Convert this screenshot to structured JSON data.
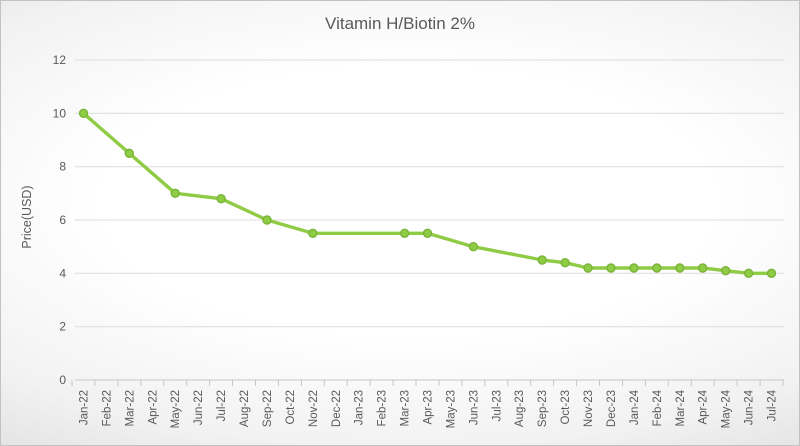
{
  "chart_data": {
    "type": "line",
    "title": "Vitamin H/Biotin 2%",
    "xlabel": "",
    "ylabel": "Price(USD)",
    "ylim": [
      0,
      12
    ],
    "yticks": [
      0,
      2,
      4,
      6,
      8,
      10,
      12
    ],
    "grid": true,
    "legend": false,
    "x_label_rotation": -90,
    "categories": [
      "Jan-22",
      "Feb-22",
      "Mar-22",
      "Apr-22",
      "May-22",
      "Jun-22",
      "Jul-22",
      "Aug-22",
      "Sep-22",
      "Oct-22",
      "Nov-22",
      "Dec-22",
      "Jan-23",
      "Feb-23",
      "Mar-23",
      "Apr-23",
      "May-23",
      "Jun-23",
      "Jul-23",
      "Aug-23",
      "Sep-23",
      "Oct-23",
      "Nov-23",
      "Dec-23",
      "Jan-24",
      "Feb-24",
      "Mar-24",
      "Apr-24",
      "May-24",
      "Jun-24",
      "Jul-24"
    ],
    "series": [
      {
        "name": "Vitamin H/Biotin 2%",
        "color": "#90CB45",
        "marker_stroke": "#79B43A",
        "marker": "circle",
        "points": [
          {
            "x": "Jan-22",
            "y": 10
          },
          {
            "x": "Mar-22",
            "y": 8.5
          },
          {
            "x": "May-22",
            "y": 7
          },
          {
            "x": "Jul-22",
            "y": 6.8
          },
          {
            "x": "Sep-22",
            "y": 6
          },
          {
            "x": "Nov-22",
            "y": 5.5
          },
          {
            "x": "Mar-23",
            "y": 5.5
          },
          {
            "x": "Apr-23",
            "y": 5.5
          },
          {
            "x": "Jun-23",
            "y": 5
          },
          {
            "x": "Sep-23",
            "y": 4.5
          },
          {
            "x": "Oct-23",
            "y": 4.4
          },
          {
            "x": "Nov-23",
            "y": 4.2
          },
          {
            "x": "Dec-23",
            "y": 4.2
          },
          {
            "x": "Jan-24",
            "y": 4.2
          },
          {
            "x": "Feb-24",
            "y": 4.2
          },
          {
            "x": "Mar-24",
            "y": 4.2
          },
          {
            "x": "Apr-24",
            "y": 4.2
          },
          {
            "x": "May-24",
            "y": 4.1
          },
          {
            "x": "Jun-24",
            "y": 4
          },
          {
            "x": "Jul-24",
            "y": 4
          }
        ]
      }
    ]
  },
  "colors": {
    "text": "#595959",
    "gridline": "#dcdcdc",
    "axis": "#c6c6c6",
    "background_center": "#ffffff",
    "background_edge": "#c7c7c7"
  }
}
